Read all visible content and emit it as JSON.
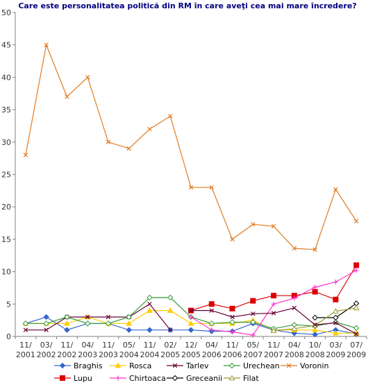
{
  "chart_data": {
    "type": "line",
    "title": "Care este personalitatea politică din RM în care aveţi cea mai mare încredere?",
    "ylim": [
      0,
      50
    ],
    "yticks": [
      0,
      5,
      10,
      15,
      20,
      25,
      30,
      35,
      40,
      45,
      50
    ],
    "grid": false,
    "legend_position": "bottom",
    "categories": [
      [
        "11/",
        "2001"
      ],
      [
        "03/",
        "2002"
      ],
      [
        "11/",
        "2002"
      ],
      [
        "04/",
        "2003"
      ],
      [
        "11/",
        "2003"
      ],
      [
        "05/",
        "2004"
      ],
      [
        "11/",
        "2004"
      ],
      [
        "02/",
        "2005"
      ],
      [
        "12/",
        "2005"
      ],
      [
        "04/",
        "2006"
      ],
      [
        "11/",
        "2006"
      ],
      [
        "05/",
        "2007"
      ],
      [
        "11/",
        "2007"
      ],
      [
        "04/",
        "2008"
      ],
      [
        "10/",
        "2008"
      ],
      [
        "03/",
        "2009"
      ],
      [
        "07/",
        "2009"
      ]
    ],
    "series": [
      {
        "name": "Braghis",
        "color": "#3366cc",
        "marker": "diamond",
        "values": [
          2,
          3,
          1,
          2,
          2,
          1,
          1,
          1,
          1,
          0.8,
          0.8,
          2,
          1,
          0.5,
          0.3,
          1,
          0.4
        ]
      },
      {
        "name": "Rosca",
        "color": "#ffcc00",
        "marker": "triangle",
        "values": [
          2,
          2,
          2,
          3,
          2,
          2,
          4,
          4,
          2,
          2,
          2,
          2.5,
          1,
          1,
          1,
          0.5,
          0.5
        ]
      },
      {
        "name": "Tarlev",
        "color": "#660033",
        "marker": "x",
        "values": [
          1,
          1,
          3,
          3,
          3,
          3,
          5,
          1,
          null,
          null,
          null,
          null,
          null,
          null,
          null,
          null,
          null
        ]
      },
      {
        "name": "Urechean",
        "color": "#339933",
        "marker": "diamond-open",
        "values": [
          2,
          2,
          3,
          2,
          2,
          3,
          6,
          6,
          3,
          2,
          2.2,
          2.2,
          1.2,
          1.8,
          1.6,
          2.2,
          1.3
        ]
      },
      {
        "name": "Voronin",
        "color": "#e07b20",
        "marker": "x",
        "values": [
          28,
          45,
          37,
          40,
          30,
          29,
          32,
          34,
          23,
          23,
          15,
          17.3,
          17,
          13.6,
          13.4,
          22.7,
          17.8
        ]
      },
      {
        "name": "Lupu",
        "color": "#dd0000",
        "marker": "square",
        "values": [
          null,
          null,
          null,
          null,
          null,
          null,
          null,
          null,
          4,
          5,
          4.3,
          5.5,
          6.3,
          6.3,
          6.9,
          5.7,
          11
        ]
      },
      {
        "name": "Chirtoaca",
        "color": "#ff33cc",
        "marker": "plus",
        "values": [
          null,
          null,
          null,
          null,
          null,
          null,
          null,
          null,
          3,
          1,
          0.7,
          0.2,
          5,
          5.9,
          7.6,
          8.4,
          10.2
        ]
      },
      {
        "name": "Greceanii",
        "color": "#000000",
        "marker": "diamond-open",
        "values": [
          null,
          null,
          null,
          null,
          null,
          null,
          null,
          null,
          null,
          null,
          null,
          null,
          null,
          null,
          2.9,
          2.9,
          5.1
        ]
      },
      {
        "name": "Filat",
        "color": "#999933",
        "marker": "triangle-open",
        "values": [
          null,
          null,
          null,
          null,
          null,
          null,
          null,
          null,
          null,
          null,
          null,
          null,
          0.9,
          1.2,
          1.7,
          3.9,
          4.4
        ]
      }
    ],
    "extra_series_segments": [
      {
        "name": "Tarlev-2",
        "color": "#660033",
        "marker": "x",
        "values": [
          null,
          null,
          null,
          null,
          null,
          null,
          null,
          null,
          4,
          4,
          3,
          3.5,
          3.6,
          4.4,
          1.8,
          2.1,
          0.4
        ]
      }
    ]
  }
}
